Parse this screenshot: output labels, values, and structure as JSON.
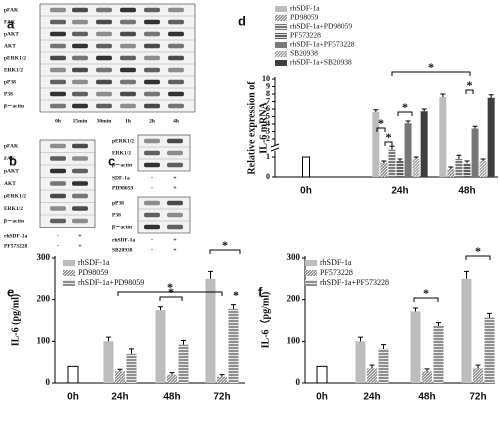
{
  "blots": [
    {
      "panel_label": "a",
      "blocks": [
        {
          "rows": [
            "pFAK",
            "FAK",
            "pAKT",
            "AKT",
            "pERK1/2",
            "ERK1/2",
            "pP38",
            "P38",
            "β－actin"
          ],
          "lanes": [
            "0h",
            "15min",
            "30min",
            "1h",
            "2h",
            "4h"
          ]
        }
      ]
    },
    {
      "panel_label": "b",
      "blocks": [
        {
          "rows": [
            "pFAK",
            "FAK",
            "pAKT",
            "AKT",
            "pERK1/2",
            "ERK1/2",
            "β－actin"
          ],
          "treatments": [
            {
              "name": "rhSDF-1a",
              "levels": [
                "-",
                "+"
              ]
            },
            {
              "name": "PF573228",
              "levels": [
                "-",
                "+"
              ]
            }
          ]
        }
      ]
    },
    {
      "panel_label": "c",
      "blocks": [
        {
          "rows": [
            "pERK1/2",
            "ERK1/2",
            "β－actin"
          ],
          "treatments": [
            {
              "name": "SDF-1a",
              "levels": [
                "-",
                "+"
              ]
            },
            {
              "name": "PD98059",
              "levels": [
                "-",
                "+"
              ]
            }
          ]
        },
        {
          "rows": [
            "pP38",
            "P38",
            "β－actin"
          ],
          "treatments": [
            {
              "name": "rhSDF-1a",
              "levels": [
                "-",
                "+"
              ]
            },
            {
              "name": "SB20938",
              "levels": [
                "-",
                "+"
              ]
            }
          ]
        }
      ]
    }
  ],
  "chart_data": [
    {
      "type": "bar",
      "panel_label": "d",
      "y_label": [
        "Relative expression of",
        "IL-6 mRNA"
      ],
      "categories": [
        "0h",
        "24h",
        "48h"
      ],
      "ylim": [
        0,
        10
      ],
      "yticks": [
        0,
        1,
        2,
        3,
        4,
        5,
        6,
        7,
        8,
        9,
        10
      ],
      "axis_break": [
        1,
        2
      ],
      "series": [
        {
          "color": "#ffffff",
          "values": [
            1,
            null,
            null
          ],
          "errors": [
            0,
            null,
            null
          ]
        },
        {
          "name": "rhSDF-1a",
          "color": "#bdbdbd",
          "values": [
            null,
            5.6,
            7.6
          ],
          "errors": [
            null,
            0.3,
            0.4
          ]
        },
        {
          "name": "PD98059",
          "color": "#8a8a8a",
          "hatch": "diagonal",
          "values": [
            null,
            0.7,
            0.4
          ],
          "errors": [
            null,
            0.1,
            0.1
          ]
        },
        {
          "name": "rhSDF-1a+PD98059",
          "color": "#7a7a7a",
          "hatch": "horizontal",
          "values": [
            null,
            1.4,
            0.9
          ],
          "errors": [
            null,
            0.2,
            0.2
          ]
        },
        {
          "name": "PF573228",
          "color": "#5e5e5e",
          "hatch": "horizontal",
          "values": [
            null,
            0.8,
            0.7
          ],
          "errors": [
            null,
            0.1,
            0.1
          ]
        },
        {
          "name": "rhSDF-1a+PF573228",
          "color": "#777777",
          "values": [
            null,
            4.1,
            3.4
          ],
          "errors": [
            null,
            0.3,
            0.3
          ]
        },
        {
          "name": "SB20938",
          "color": "#a0a0a0",
          "hatch": "diagonal",
          "values": [
            null,
            0.9,
            0.8
          ],
          "errors": [
            null,
            0.1,
            0.1
          ]
        },
        {
          "name": "rhSDF-1a+SB20938",
          "color": "#3e3e3e",
          "values": [
            null,
            5.7,
            7.5
          ],
          "errors": [
            null,
            0.3,
            0.4
          ]
        }
      ],
      "annotations": [
        "*",
        "*",
        "*",
        "*",
        "*"
      ]
    },
    {
      "type": "bar",
      "panel_label": "e",
      "y_label": "IL-6 (pg/ml)",
      "categories": [
        "0h",
        "24h",
        "48h",
        "72h"
      ],
      "ylim": [
        0,
        300
      ],
      "yticks": [
        0,
        100,
        200,
        300
      ],
      "series": [
        {
          "color": "#ffffff",
          "values": [
            40,
            null,
            null,
            null
          ],
          "errors": [
            0,
            null,
            null,
            null
          ]
        },
        {
          "name": "rhSDF-1a",
          "color": "#bdbdbd",
          "values": [
            null,
            100,
            175,
            250
          ],
          "errors": [
            null,
            10,
            8,
            18
          ]
        },
        {
          "name": "PD98059",
          "color": "#8a8a8a",
          "hatch": "diagonal",
          "values": [
            null,
            28,
            20,
            15
          ],
          "errors": [
            null,
            5,
            5,
            5
          ]
        },
        {
          "name": "rhSDF-1a+PD98059",
          "color": "#8f8f8f",
          "hatch": "horizontal",
          "values": [
            null,
            70,
            92,
            178
          ],
          "errors": [
            null,
            12,
            10,
            10
          ]
        }
      ],
      "annotations": [
        "*",
        "*",
        "*",
        "*"
      ]
    },
    {
      "type": "bar",
      "panel_label": "f",
      "y_label": "IL-6（pg/ml)",
      "categories": [
        "0h",
        "24h",
        "48h",
        "72h"
      ],
      "ylim": [
        0,
        300
      ],
      "yticks": [
        0,
        100,
        200,
        300
      ],
      "series": [
        {
          "color": "#ffffff",
          "values": [
            40,
            null,
            null,
            null
          ],
          "errors": [
            0,
            null,
            null,
            null
          ]
        },
        {
          "name": "rhSDF-1a",
          "color": "#bdbdbd",
          "values": [
            null,
            100,
            172,
            250
          ],
          "errors": [
            null,
            10,
            8,
            18
          ]
        },
        {
          "name": "PF573228",
          "color": "#8a8a8a",
          "hatch": "diagonal",
          "values": [
            null,
            35,
            28,
            35
          ],
          "errors": [
            null,
            8,
            6,
            8
          ]
        },
        {
          "name": "rhSDF-1a+PF573228",
          "color": "#8f8f8f",
          "hatch": "horizontal",
          "values": [
            null,
            82,
            137,
            157
          ],
          "errors": [
            null,
            10,
            8,
            10
          ]
        }
      ],
      "annotations": [
        "*",
        "*"
      ]
    }
  ]
}
